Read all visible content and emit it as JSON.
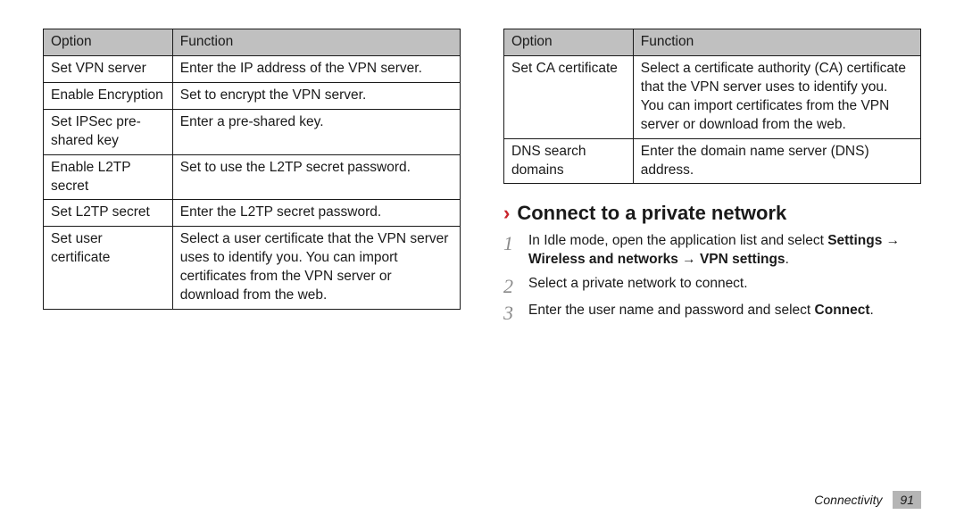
{
  "left_table": {
    "type": "table",
    "header_bg": "#c0c0c0",
    "border_color": "#1a1a1a",
    "columns": [
      "Option",
      "Function"
    ],
    "rows": [
      [
        "Set VPN server",
        "Enter the IP address of the VPN server."
      ],
      [
        "Enable Encryption",
        "Set to encrypt the VPN server."
      ],
      [
        "Set IPSec pre-shared key",
        "Enter a pre-shared key."
      ],
      [
        "Enable L2TP secret",
        "Set to use the L2TP secret password."
      ],
      [
        "Set L2TP secret",
        "Enter the L2TP secret password."
      ],
      [
        "Set user certificate",
        "Select a user certificate that the VPN server uses to identify you. You can import certificates from the VPN server or download from the web."
      ]
    ]
  },
  "right_table": {
    "type": "table",
    "header_bg": "#c0c0c0",
    "border_color": "#1a1a1a",
    "columns": [
      "Option",
      "Function"
    ],
    "rows": [
      [
        "Set CA certificate",
        "Select a certificate authority (CA) certificate that the VPN server uses to identify you. You can import certificates from the VPN server or download from the web."
      ],
      [
        "DNS search domains",
        "Enter the domain name server (DNS) address."
      ]
    ]
  },
  "section": {
    "chevron": "›",
    "chevron_color": "#c9222a",
    "title": "Connect to a private network",
    "title_fontsize": 22
  },
  "steps": {
    "num_color": "#8a8a8a",
    "s1a": "In Idle mode, open the application list and select ",
    "s1b": "Settings → Wireless and networks → VPN settings",
    "s1c": ".",
    "s2": "Select a private network to connect.",
    "s3a": "Enter the user name and password and select ",
    "s3b": "Connect",
    "s3c": "."
  },
  "footer": {
    "chapter": "Connectivity",
    "page": "91",
    "badge_bg": "#b5b5b5"
  }
}
